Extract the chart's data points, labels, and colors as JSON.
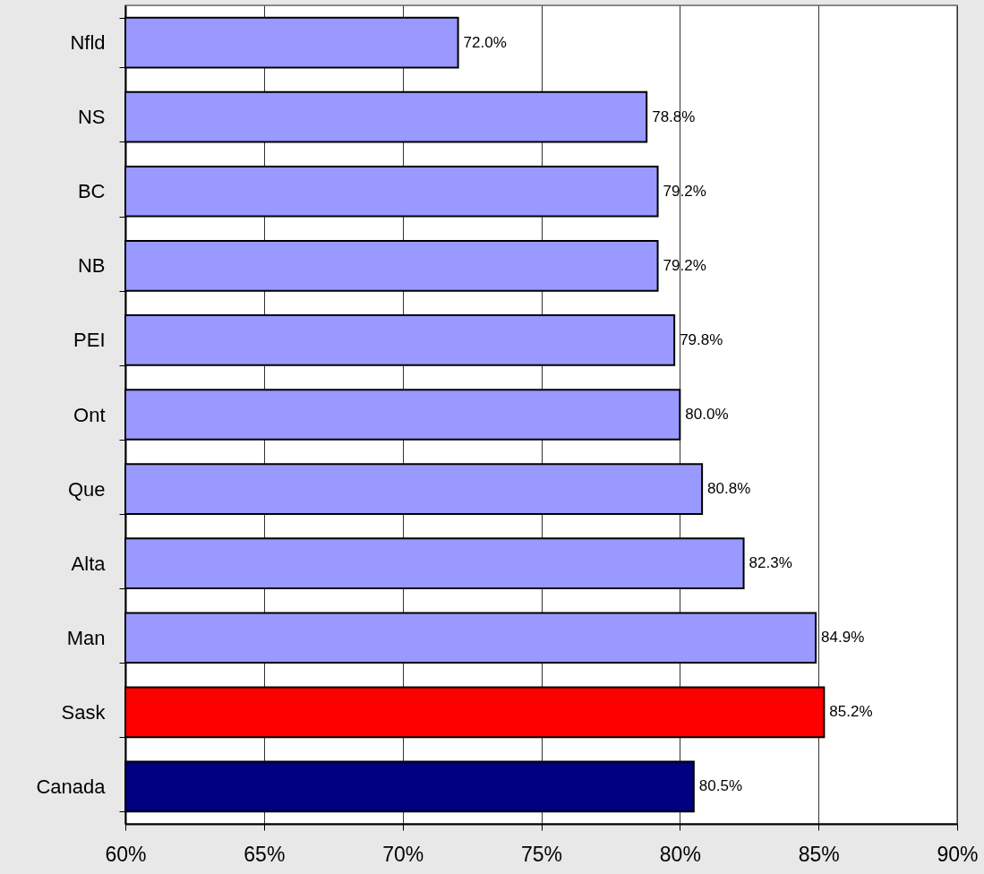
{
  "chart_data": {
    "type": "bar",
    "orientation": "horizontal",
    "categories": [
      "Nfld",
      "NS",
      "BC",
      "NB",
      "PEI",
      "Ont",
      "Que",
      "Alta",
      "Man",
      "Sask",
      "Canada"
    ],
    "values": [
      72.0,
      78.8,
      79.2,
      79.2,
      79.8,
      80.0,
      80.8,
      82.3,
      84.9,
      85.2,
      80.5
    ],
    "colors": [
      "#9999ff",
      "#9999ff",
      "#9999ff",
      "#9999ff",
      "#9999ff",
      "#9999ff",
      "#9999ff",
      "#9999ff",
      "#9999ff",
      "#ff0000",
      "#000080"
    ],
    "value_labels": [
      "72.0%",
      "78.8%",
      "79.2%",
      "79.2%",
      "79.8%",
      "80.0%",
      "80.8%",
      "82.3%",
      "84.9%",
      "85.2%",
      "80.5%"
    ],
    "xlim": [
      60,
      90
    ],
    "xticks": [
      {
        "value": 60,
        "label": "60%"
      },
      {
        "value": 65,
        "label": "65%"
      },
      {
        "value": 70,
        "label": "70%"
      },
      {
        "value": 75,
        "label": "75%"
      },
      {
        "value": 80,
        "label": "80%"
      },
      {
        "value": 85,
        "label": "85%"
      },
      {
        "value": 90,
        "label": "90%"
      }
    ],
    "grid": "x"
  }
}
